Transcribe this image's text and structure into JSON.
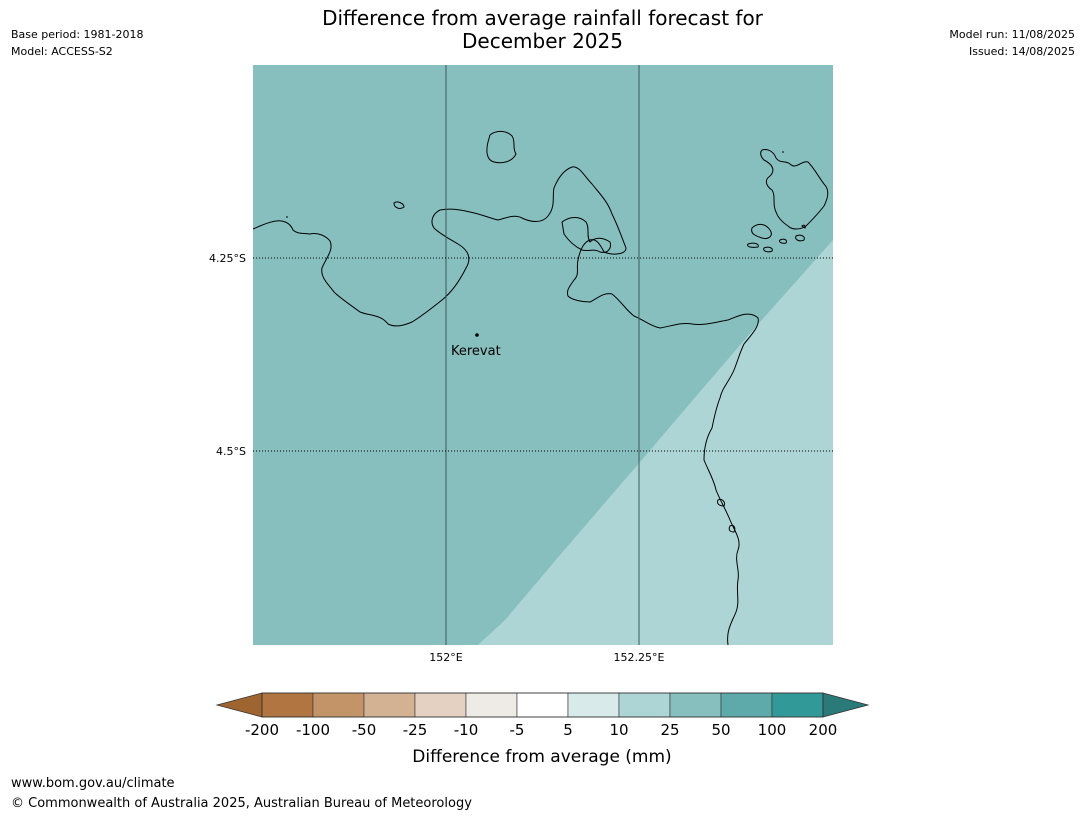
{
  "header": {
    "title_line1": "Difference from average rainfall forecast for",
    "title_line2": "December 2025",
    "base_period": "Base period: 1981-2018",
    "model": "Model: ACCESS-S2",
    "model_run": "Model run: 11/08/2025",
    "issued": "Issued: 14/08/2025"
  },
  "map": {
    "fill_color_main": "#87bfbf",
    "fill_color_secondary": "#add5d5",
    "coastline_color": "#000000",
    "lat_labels": [
      "4.25°S",
      "4.5°S"
    ],
    "lon_labels": [
      "152°E",
      "152.25°E"
    ],
    "place": {
      "name": "Kerevat"
    }
  },
  "legend": {
    "title": "Difference from average (mm)",
    "ticks": [
      "-200",
      "-100",
      "-50",
      "-25",
      "-10",
      "-5",
      "5",
      "10",
      "25",
      "50",
      "100",
      "200"
    ],
    "colors": [
      "#9e6530",
      "#b07540",
      "#c49469",
      "#d3b293",
      "#e4d1c1",
      "#eeeae6",
      "#ffffff",
      "#d8eaea",
      "#add5d5",
      "#87bfbf",
      "#5ea9a9",
      "#329999",
      "#2b7a7a"
    ]
  },
  "footer": {
    "url": "www.bom.gov.au/climate",
    "copyright": "© Commonwealth of Australia 2025, Australian Bureau of Meteorology"
  }
}
